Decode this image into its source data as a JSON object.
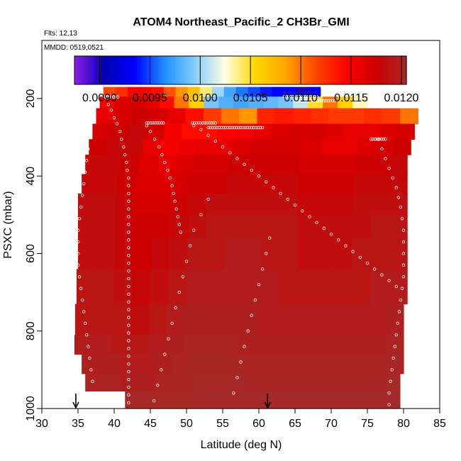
{
  "chart_data": {
    "type": "heatmap",
    "title": "ATOM4 Northeast_Pacific_2 CH3Br_GMI",
    "flights_label": "Flts: 12,13",
    "mmdd_label": "MMDD: 0519,0521",
    "xlabel": "Latitude (deg N)",
    "ylabel": "PSXC (mbar)",
    "xlim": [
      30,
      85
    ],
    "ylim": [
      1000,
      50
    ],
    "y_reversed": true,
    "x_ticks": [
      30,
      35,
      40,
      45,
      50,
      55,
      60,
      65,
      70,
      75,
      80,
      85
    ],
    "x_tick_labels": [
      "30",
      "35",
      "40",
      "45",
      "50",
      "55",
      "60",
      "65",
      "70",
      "75",
      "80",
      "85"
    ],
    "y_ticks": [
      200,
      400,
      600,
      800,
      1000
    ],
    "y_tick_labels": [
      "200",
      "400",
      "600",
      "800",
      "1000"
    ],
    "colorbar": {
      "min": 0.00875,
      "max": 0.01205,
      "ticks": [
        0.009,
        0.0095,
        0.01,
        0.0105,
        0.011,
        0.0115,
        0.012
      ],
      "tick_labels": [
        "0.0090",
        "0.0095",
        "0.0100",
        "0.0105",
        "0.0110",
        "0.0115",
        "0.0120"
      ],
      "colors": [
        "#8B1FE8",
        "#0000B4",
        "#0000FF",
        "#1E90FF",
        "#87CEFA",
        "#FFFFE0",
        "#FFD700",
        "#FFA500",
        "#FF4500",
        "#FF0000",
        "#CD0000",
        "#A52A2A"
      ]
    },
    "rows": [
      {
        "p_top": 170,
        "p_bot": 195,
        "lat_start": 38.5,
        "lat_end": 68.5,
        "values": [
          0.01115,
          0.01125,
          0.01145,
          0.0115,
          0.0114,
          0.0111,
          0.0109,
          0.0107,
          0.0104,
          0.01,
          0.00975,
          0.0096,
          0.0095,
          0.0094,
          0.00935,
          0.0093,
          0.009,
          0.0093
        ]
      },
      {
        "p_top": 195,
        "p_bot": 225,
        "lat_start": 38.0,
        "lat_end": 75.0,
        "values": [
          0.0115,
          0.01165,
          0.0117,
          0.0116,
          0.0114,
          0.011,
          0.0106,
          0.0099,
          0.0098,
          0.00975,
          0.0098,
          0.00985,
          0.0099,
          0.0101,
          0.0105,
          0.011,
          0.0106,
          0.0103
        ]
      },
      {
        "p_top": 225,
        "p_bot": 265,
        "lat_start": 37.5,
        "lat_end": 82.0,
        "values": [
          0.0116,
          0.0117,
          0.01175,
          0.0117,
          0.0116,
          0.0114,
          0.0112,
          0.011,
          0.0109,
          0.0113,
          0.01135,
          0.0113,
          0.01125,
          0.0112,
          0.0112,
          0.01125,
          0.0112,
          0.011
        ]
      },
      {
        "p_top": 265,
        "p_bot": 305,
        "lat_start": 37.0,
        "lat_end": 81.5,
        "values": [
          0.0117,
          0.01175,
          0.0118,
          0.0117,
          0.0115,
          0.0114,
          0.0114,
          0.01145,
          0.0115,
          0.0116,
          0.01165,
          0.0117,
          0.0117,
          0.01165,
          0.0116,
          0.0116,
          0.01165,
          0.0117
        ]
      },
      {
        "p_top": 305,
        "p_bot": 345,
        "lat_start": 36.5,
        "lat_end": 81.0,
        "values": [
          0.01175,
          0.0118,
          0.0118,
          0.0116,
          0.0115,
          0.01155,
          0.0116,
          0.0116,
          0.01165,
          0.0117,
          0.0117,
          0.0117,
          0.01165,
          0.0116,
          0.0116,
          0.01165,
          0.0117,
          0.01175
        ]
      },
      {
        "p_top": 345,
        "p_bot": 395,
        "lat_start": 36.0,
        "lat_end": 80.5,
        "values": [
          0.0118,
          0.0118,
          0.01175,
          0.01165,
          0.0116,
          0.01165,
          0.0117,
          0.0117,
          0.01175,
          0.01175,
          0.01175,
          0.01175,
          0.0117,
          0.0117,
          0.0117,
          0.01175,
          0.01175,
          0.0118
        ]
      },
      {
        "p_top": 395,
        "p_bot": 445,
        "lat_start": 35.5,
        "lat_end": 80.5,
        "values": [
          0.0118,
          0.0118,
          0.01175,
          0.01165,
          0.01165,
          0.0117,
          0.01175,
          0.01175,
          0.0118,
          0.0118,
          0.0118,
          0.0118,
          0.01175,
          0.01175,
          0.01175,
          0.0118,
          0.0118,
          0.0118
        ]
      },
      {
        "p_top": 445,
        "p_bot": 500,
        "lat_start": 35.0,
        "lat_end": 80.5,
        "values": [
          0.01185,
          0.01185,
          0.0118,
          0.0117,
          0.0117,
          0.01175,
          0.0118,
          0.01185,
          0.01185,
          0.01185,
          0.01185,
          0.01185,
          0.0118,
          0.0118,
          0.0118,
          0.01185,
          0.01185,
          0.01185
        ]
      },
      {
        "p_top": 500,
        "p_bot": 560,
        "lat_start": 35.0,
        "lat_end": 80.5,
        "values": [
          0.01185,
          0.01185,
          0.0118,
          0.01175,
          0.01175,
          0.0118,
          0.01185,
          0.0119,
          0.0119,
          0.0119,
          0.0119,
          0.0119,
          0.01185,
          0.01185,
          0.01185,
          0.01185,
          0.0119,
          0.0119
        ]
      },
      {
        "p_top": 560,
        "p_bot": 640,
        "lat_start": 35.0,
        "lat_end": 80.5,
        "values": [
          0.01185,
          0.01185,
          0.0118,
          0.01175,
          0.0118,
          0.01185,
          0.0119,
          0.0119,
          0.01195,
          0.01195,
          0.0119,
          0.0119,
          0.01185,
          0.01185,
          0.01185,
          0.0119,
          0.0119,
          0.0119
        ]
      },
      {
        "p_top": 640,
        "p_bot": 730,
        "lat_start": 34.8,
        "lat_end": 80.5,
        "values": [
          0.0119,
          0.0119,
          0.01185,
          0.0118,
          0.01185,
          0.0119,
          0.01195,
          0.01195,
          0.01195,
          0.01195,
          0.01195,
          0.0119,
          0.0119,
          0.0119,
          0.0119,
          0.0119,
          0.01195,
          0.01195
        ]
      },
      {
        "p_top": 730,
        "p_bot": 810,
        "lat_start": 34.6,
        "lat_end": 80.0,
        "values": [
          0.0119,
          0.0119,
          0.0119,
          0.01185,
          0.0119,
          0.01195,
          0.01198,
          0.01198,
          0.01198,
          0.01198,
          0.01195,
          0.01195,
          0.01195,
          0.01195,
          0.01195,
          0.01195,
          0.01195,
          0.01198
        ]
      },
      {
        "p_top": 810,
        "p_bot": 860,
        "lat_start": 34.5,
        "lat_end": 80.0,
        "values": [
          0.01195,
          0.01195,
          0.01192,
          0.01192,
          0.01195,
          0.01198,
          0.012,
          0.012,
          0.012,
          0.01198,
          0.01198,
          0.01198,
          0.01198,
          0.01198,
          0.01198,
          0.01198,
          0.01198,
          0.012
        ]
      },
      {
        "p_top": 860,
        "p_bot": 910,
        "lat_start": 35.5,
        "lat_end": 80.0,
        "values": [
          0.01198,
          0.01198,
          0.01195,
          0.01195,
          0.01198,
          0.012,
          0.01202,
          0.01202,
          0.01202,
          0.012,
          0.012,
          0.012,
          0.012,
          0.012,
          0.012,
          0.012,
          0.012,
          0.01202
        ]
      },
      {
        "p_top": 910,
        "p_bot": 955,
        "lat_start": 36.0,
        "lat_end": 79.5,
        "values": [
          0.012,
          0.012,
          0.01198,
          0.01198,
          0.012,
          0.01202,
          0.01203,
          0.01203,
          0.01203,
          0.01202,
          0.01202,
          0.01202,
          0.01202,
          0.01202,
          0.01202,
          0.01202,
          0.01202,
          0.01203
        ]
      },
      {
        "p_top": 955,
        "p_bot": 1000,
        "lat_start": 41.5,
        "lat_end": 79.5,
        "values": [
          0.01203,
          0.01203,
          0.01203,
          0.01203,
          0.01203,
          0.01204,
          0.01204,
          0.01204,
          0.01204,
          0.01204,
          0.01204,
          0.01204,
          0.01204,
          0.01204,
          0.01204,
          0.01204,
          0.01204,
          0.01204
        ]
      }
    ],
    "observation_tracks": [
      [
        [
          38.8,
          195
        ],
        [
          39.2,
          215
        ],
        [
          39.6,
          230
        ],
        [
          40.0,
          250
        ],
        [
          40.4,
          265
        ],
        [
          40.8,
          285
        ],
        [
          41.0,
          305
        ],
        [
          41.3,
          325
        ],
        [
          41.5,
          345
        ],
        [
          41.7,
          365
        ],
        [
          41.8,
          385
        ],
        [
          42.0,
          405
        ],
        [
          42.0,
          425
        ],
        [
          42.0,
          445
        ],
        [
          42.0,
          465
        ],
        [
          42.0,
          485
        ],
        [
          42.0,
          505
        ],
        [
          42.0,
          525
        ],
        [
          42.0,
          545
        ],
        [
          42.0,
          565
        ],
        [
          42.0,
          585
        ],
        [
          42.0,
          605
        ],
        [
          42.0,
          625
        ],
        [
          42.0,
          645
        ],
        [
          42.0,
          665
        ],
        [
          42.0,
          685
        ],
        [
          42.0,
          705
        ],
        [
          42.0,
          725
        ],
        [
          42.0,
          745
        ],
        [
          42.0,
          765
        ],
        [
          42.0,
          785
        ],
        [
          42.0,
          805
        ],
        [
          42.0,
          825
        ],
        [
          42.0,
          845
        ],
        [
          42.0,
          865
        ],
        [
          42.0,
          885
        ],
        [
          42.0,
          905
        ],
        [
          42.0,
          925
        ],
        [
          42.0,
          945
        ],
        [
          42.0,
          965
        ],
        [
          42.0,
          985
        ]
      ],
      [
        [
          36.8,
          275
        ],
        [
          36.6,
          300
        ],
        [
          36.4,
          330
        ],
        [
          36.2,
          360
        ],
        [
          36.0,
          390
        ],
        [
          35.8,
          420
        ],
        [
          35.6,
          450
        ],
        [
          35.4,
          480
        ],
        [
          35.2,
          510
        ],
        [
          35.0,
          540
        ],
        [
          35.0,
          570
        ],
        [
          35.0,
          600
        ],
        [
          35.0,
          630
        ],
        [
          35.2,
          660
        ],
        [
          35.4,
          690
        ],
        [
          35.6,
          720
        ],
        [
          35.8,
          750
        ],
        [
          36.0,
          780
        ],
        [
          36.2,
          810
        ],
        [
          36.4,
          840
        ],
        [
          36.6,
          870
        ],
        [
          36.8,
          900
        ],
        [
          37.0,
          930
        ],
        [
          37.0,
          960
        ]
      ],
      [
        [
          44.5,
          270
        ],
        [
          45.0,
          285
        ],
        [
          45.6,
          305
        ],
        [
          46.2,
          325
        ],
        [
          46.6,
          345
        ],
        [
          47.0,
          365
        ],
        [
          47.4,
          385
        ],
        [
          47.7,
          405
        ],
        [
          48.0,
          425
        ],
        [
          48.2,
          445
        ],
        [
          48.4,
          465
        ],
        [
          48.6,
          485
        ],
        [
          48.8,
          505
        ],
        [
          49.0,
          525
        ],
        [
          49.2,
          545
        ]
      ],
      [
        [
          51.0,
          270
        ],
        [
          52.0,
          280
        ],
        [
          53.0,
          295
        ],
        [
          54.0,
          310
        ],
        [
          55.0,
          325
        ],
        [
          56.0,
          340
        ],
        [
          57.0,
          355
        ],
        [
          58.0,
          370
        ],
        [
          59.0,
          385
        ],
        [
          60.0,
          400
        ],
        [
          61.0,
          415
        ],
        [
          62.0,
          430
        ],
        [
          63.0,
          445
        ],
        [
          64.0,
          460
        ],
        [
          65.0,
          475
        ],
        [
          66.0,
          490
        ],
        [
          67.0,
          505
        ],
        [
          68.0,
          520
        ],
        [
          69.0,
          535
        ],
        [
          70.0,
          550
        ],
        [
          71.0,
          565
        ],
        [
          72.0,
          580
        ],
        [
          73.0,
          595
        ],
        [
          74.0,
          610
        ],
        [
          75.0,
          625
        ],
        [
          76.0,
          640
        ],
        [
          77.0,
          655
        ],
        [
          78.0,
          670
        ],
        [
          79.0,
          685
        ]
      ],
      [
        [
          76.5,
          305
        ],
        [
          77.0,
          330
        ],
        [
          77.5,
          355
        ],
        [
          78.0,
          380
        ],
        [
          78.5,
          405
        ],
        [
          79.0,
          430
        ],
        [
          79.3,
          455
        ],
        [
          79.6,
          480
        ],
        [
          79.8,
          510
        ],
        [
          80.0,
          540
        ],
        [
          80.0,
          570
        ],
        [
          80.0,
          600
        ],
        [
          80.0,
          630
        ],
        [
          80.0,
          660
        ],
        [
          79.8,
          690
        ],
        [
          79.6,
          720
        ],
        [
          79.4,
          750
        ],
        [
          79.2,
          780
        ],
        [
          79.0,
          810
        ],
        [
          78.8,
          840
        ],
        [
          78.6,
          870
        ],
        [
          78.4,
          900
        ],
        [
          78.2,
          930
        ],
        [
          78.0,
          960
        ],
        [
          78.0,
          990
        ]
      ],
      [
        [
          61.5,
          560
        ],
        [
          61.0,
          600
        ],
        [
          60.5,
          640
        ],
        [
          60.0,
          680
        ],
        [
          59.5,
          720
        ],
        [
          59.0,
          760
        ],
        [
          58.5,
          800
        ],
        [
          58.0,
          840
        ],
        [
          57.5,
          880
        ],
        [
          57.0,
          920
        ],
        [
          56.5,
          960
        ]
      ],
      [
        [
          53.0,
          460
        ],
        [
          52.0,
          500
        ],
        [
          51.0,
          540
        ],
        [
          50.5,
          580
        ],
        [
          50.0,
          620
        ],
        [
          49.5,
          660
        ],
        [
          49.0,
          700
        ],
        [
          48.5,
          740
        ],
        [
          48.0,
          780
        ],
        [
          47.5,
          820
        ],
        [
          47.0,
          860
        ],
        [
          46.5,
          900
        ],
        [
          46.0,
          940
        ],
        [
          45.5,
          980
        ]
      ]
    ],
    "observation_segments": [
      {
        "p": 196,
        "lat_start": 38.8,
        "lat_end": 40.5
      },
      {
        "p": 263,
        "lat_start": 44.5,
        "lat_end": 46.8
      },
      {
        "p": 263,
        "lat_start": 50.8,
        "lat_end": 54.0
      },
      {
        "p": 275,
        "lat_start": 53.0,
        "lat_end": 60.5
      },
      {
        "p": 195,
        "lat_start": 63.5,
        "lat_end": 68.0
      },
      {
        "p": 206,
        "lat_start": 65.0,
        "lat_end": 70.5
      },
      {
        "p": 305,
        "lat_start": 75.5,
        "lat_end": 77.5
      }
    ],
    "arrow_markers_lat": [
      34.7,
      61.2
    ]
  }
}
